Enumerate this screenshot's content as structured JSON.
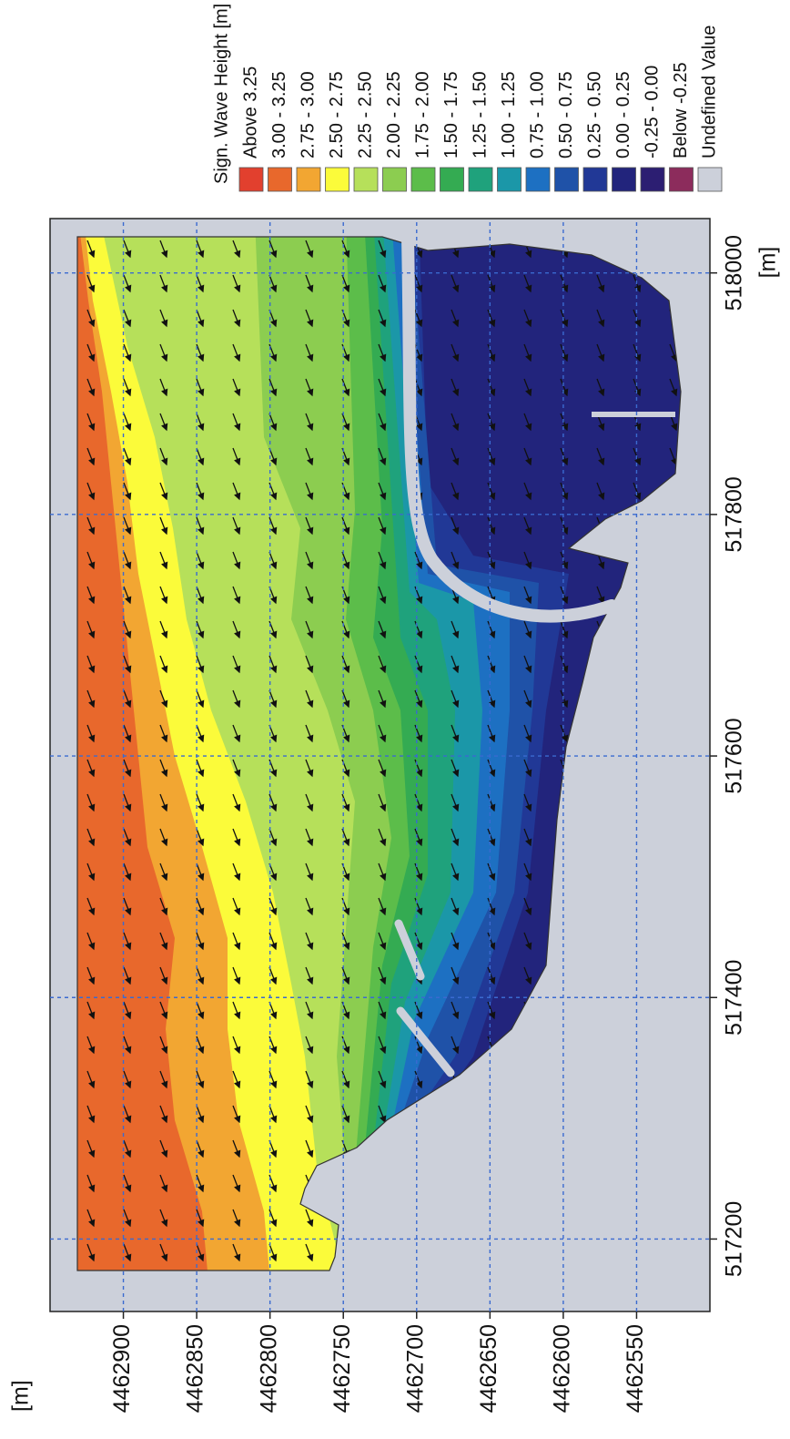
{
  "chart_data": {
    "type": "contour",
    "legend_title": "Sign. Wave Height [m]",
    "xlabel": "[m]",
    "ylabel": "[m]",
    "xlim": [
      517140,
      518045
    ],
    "ylim": [
      4462500,
      4462950
    ],
    "xticks": [
      517200,
      517400,
      517600,
      517800,
      518000
    ],
    "yticks": [
      4462900,
      4462850,
      4462800,
      4462750,
      4462700,
      4462650,
      4462600,
      4462550
    ],
    "grid": true,
    "legend": [
      {
        "label": "Above 3.25",
        "color": "#e2402e"
      },
      {
        "label": "3.00 - 3.25",
        "color": "#e8682c"
      },
      {
        "label": "2.75 - 3.00",
        "color": "#f2a632"
      },
      {
        "label": "2.50 - 2.75",
        "color": "#fbfb3a"
      },
      {
        "label": "2.25 - 2.50",
        "color": "#b6e05a"
      },
      {
        "label": "2.00 - 2.25",
        "color": "#8ccd50"
      },
      {
        "label": "1.75 - 2.00",
        "color": "#5cbd4a"
      },
      {
        "label": "1.50 - 1.75",
        "color": "#34ab52"
      },
      {
        "label": "1.25 - 1.50",
        "color": "#1fa27c"
      },
      {
        "label": "1.00 - 1.25",
        "color": "#1b97a8"
      },
      {
        "label": "0.75 - 1.00",
        "color": "#1d70c2"
      },
      {
        "label": "0.50 - 0.75",
        "color": "#1f52a8"
      },
      {
        "label": "0.25 - 0.50",
        "color": "#213896"
      },
      {
        "label": "0.00 - 0.25",
        "color": "#22247c"
      },
      {
        "label": "-0.25 - 0.00",
        "color": "#2c1e72"
      },
      {
        "label": "Below -0.25",
        "color": "#8c2c5c"
      },
      {
        "label": "Undefined Value",
        "color": "#ccd0da"
      }
    ]
  }
}
